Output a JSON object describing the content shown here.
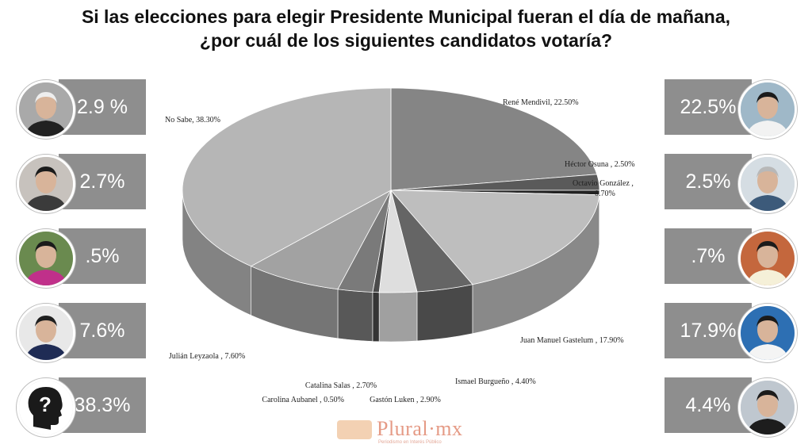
{
  "title": {
    "line1": "Si las elecciones para elegir Presidente Municipal fueran el día de mañana,",
    "line2": "¿por cuál de los siguientes candidatos votaría?"
  },
  "left_candidates": [
    {
      "pct": "2.9 %",
      "avatar_icon": "man-white-hair-icon"
    },
    {
      "pct": "2.7%",
      "avatar_icon": "woman-dark-hair-icon"
    },
    {
      "pct": ".5%",
      "avatar_icon": "woman-magenta-jacket-icon"
    },
    {
      "pct": "7.6%",
      "avatar_icon": "man-suit-logo-icon"
    },
    {
      "pct": "38.3%",
      "avatar_icon": "question-head-icon"
    }
  ],
  "right_candidates": [
    {
      "pct": "22.5%",
      "avatar_icon": "man-smiling-icon"
    },
    {
      "pct": "2.5%",
      "avatar_icon": "man-grey-hair-icon"
    },
    {
      "pct": ".7%",
      "avatar_icon": "man-yellow-shirt-icon"
    },
    {
      "pct": "17.9%",
      "avatar_icon": "man-blue-background-icon"
    },
    {
      "pct": "4.4%",
      "avatar_icon": "man-dark-suit-icon"
    }
  ],
  "chart_data": {
    "type": "pie",
    "title": "",
    "slices": [
      {
        "label": "René Mendivil, 22.50%",
        "value": 22.5,
        "color": "#858585"
      },
      {
        "label": "Héctor Osuna , 2.50%",
        "value": 2.5,
        "color": "#5a5a5a"
      },
      {
        "label": "Octavio González , 0.70%",
        "value": 0.7,
        "color": "#222222"
      },
      {
        "label": "Juan Manuel Gastelum , 17.90%",
        "value": 17.9,
        "color": "#bebebe"
      },
      {
        "label": "Ismael Burgueño , 4.40%",
        "value": 4.4,
        "color": "#656565"
      },
      {
        "label": "Gastón Luken , 2.90%",
        "value": 2.9,
        "color": "#dedede"
      },
      {
        "label": "Carolina Aubanel , 0.50%",
        "value": 0.5,
        "color": "#4a4a4a"
      },
      {
        "label": "Catalina Salas , 2.70%",
        "value": 2.7,
        "color": "#7a7a7a"
      },
      {
        "label": "Julián Leyzaola , 7.60%",
        "value": 7.6,
        "color": "#a2a2a2"
      },
      {
        "label": "No Sabe, 38.30%",
        "value": 38.3,
        "color": "#b6b6b6"
      }
    ]
  },
  "footer": {
    "brand": "Plural·mx",
    "tagline": "Periodismo en Interés Público"
  }
}
